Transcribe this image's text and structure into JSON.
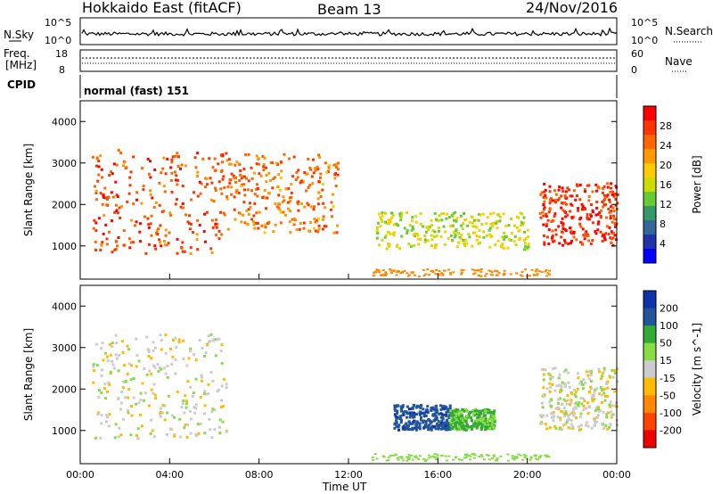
{
  "header": {
    "title": "Hokkaido East (fitACF)",
    "beam": "Beam 13",
    "date": "24/Nov/2016"
  },
  "noise_panel": {
    "left_label": "N.Sky",
    "right_label": "N.Search",
    "left_ticks": [
      "10^5",
      "10^0"
    ],
    "right_ticks": [
      "10^5",
      "10^0"
    ]
  },
  "freq_panel": {
    "left_label_1": "Freq.",
    "left_label_2": "[MHz]",
    "left_ticks": [
      "18",
      "8"
    ],
    "right_label": "Nave",
    "right_ticks": [
      "60",
      "0"
    ]
  },
  "cpid_panel": {
    "label": "CPID",
    "text": "normal (fast) 151"
  },
  "chart_data": [
    {
      "type": "heatmap",
      "name": "power",
      "ylabel": "Slant Range [km]",
      "xlabel": "",
      "y_ticks": [
        1000,
        2000,
        3000,
        4000
      ],
      "ylim": [
        200,
        4500
      ],
      "xlim_hours": [
        0,
        24
      ],
      "colorbar": {
        "label": "Power [dB]",
        "ticks": [
          "28",
          "24",
          "20",
          "16",
          "12",
          "8",
          "4"
        ],
        "colors": [
          "#ff0000",
          "#ff3300",
          "#ff6600",
          "#ff9900",
          "#ffcc00",
          "#ccdd00",
          "#66cc33",
          "#339966",
          "#336699",
          "#2233aa",
          "#0000ff"
        ]
      },
      "features": [
        {
          "hours": [
            0.5,
            6.5
          ],
          "range_km": [
            800,
            3300
          ],
          "value_db": 24
        },
        {
          "hours": [
            6.5,
            11.5
          ],
          "range_km": [
            1300,
            3200
          ],
          "value_db": 22
        },
        {
          "hours": [
            13.2,
            20.0
          ],
          "range_km": [
            900,
            1800
          ],
          "value_db": 14
        },
        {
          "hours": [
            20.5,
            24.0
          ],
          "range_km": [
            1000,
            2500
          ],
          "value_db": 26
        }
      ]
    },
    {
      "type": "heatmap",
      "name": "velocity",
      "ylabel": "Slant Range [km]",
      "xlabel": "Time UT",
      "y_ticks": [
        1000,
        2000,
        3000,
        4000
      ],
      "ylim": [
        200,
        4500
      ],
      "xlim_hours": [
        0,
        24
      ],
      "colorbar": {
        "label": "Velocity [m s^-1]",
        "ticks": [
          "200",
          "100",
          "50",
          "15",
          "-15",
          "-50",
          "-100",
          "-200"
        ],
        "colors": [
          "#1133aa",
          "#225599",
          "#33aa33",
          "#88dd44",
          "#cccccc",
          "#ffbb00",
          "#ff8800",
          "#ff4400",
          "#ee0000"
        ]
      },
      "features": [
        {
          "hours": [
            0.5,
            6.5
          ],
          "range_km": [
            800,
            3300
          ],
          "value_ms": 0
        },
        {
          "hours": [
            14.0,
            16.5
          ],
          "range_km": [
            1000,
            1600
          ],
          "value_ms": 180
        },
        {
          "hours": [
            16.5,
            18.5
          ],
          "range_km": [
            1000,
            1500
          ],
          "value_ms": 60
        },
        {
          "hours": [
            20.5,
            24.0
          ],
          "range_km": [
            1000,
            2500
          ],
          "value_ms": 0
        }
      ]
    }
  ],
  "x_tick_labels": [
    "00:00",
    "04:00",
    "08:00",
    "12:00",
    "16:00",
    "20:00",
    "00:00"
  ],
  "x_label": "Time UT"
}
